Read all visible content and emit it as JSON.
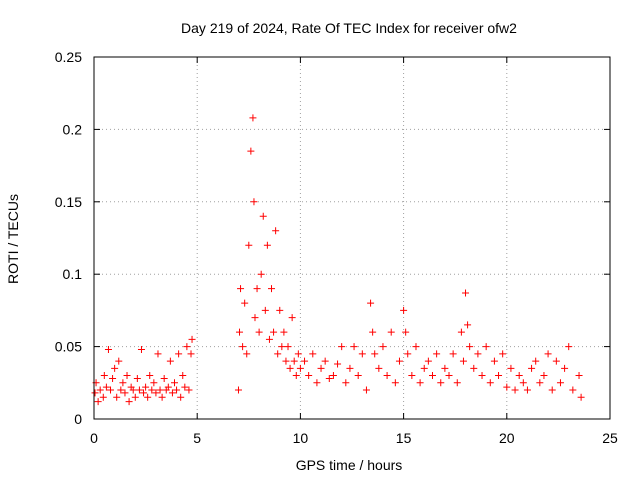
{
  "chart_data": {
    "type": "scatter",
    "title": "Day 219 of 2024, Rate Of TEC Index for receiver ofw2",
    "xlabel": "GPS time / hours",
    "ylabel": "ROTI / TECUs",
    "xlim": [
      0,
      25
    ],
    "ylim": [
      0,
      0.25
    ],
    "x_ticks": [
      "0",
      "5",
      "10",
      "15",
      "20",
      "25"
    ],
    "y_ticks": [
      "0",
      "0.05",
      "0.1",
      "0.15",
      "0.2",
      "0.25"
    ],
    "grid": true,
    "marker": "+",
    "color": "#ff0000",
    "series": [
      {
        "name": "ROTI",
        "x": [
          0.05,
          0.1,
          0.2,
          0.3,
          0.45,
          0.5,
          0.6,
          0.7,
          0.8,
          0.9,
          1.0,
          1.1,
          1.2,
          1.3,
          1.4,
          1.5,
          1.6,
          1.7,
          1.8,
          1.9,
          2.0,
          2.1,
          2.2,
          2.3,
          2.4,
          2.5,
          2.6,
          2.7,
          2.8,
          2.9,
          3.0,
          3.1,
          3.2,
          3.3,
          3.4,
          3.5,
          3.6,
          3.7,
          3.8,
          3.9,
          4.0,
          4.1,
          4.2,
          4.3,
          4.4,
          4.5,
          4.6,
          4.7,
          4.75,
          7.0,
          7.05,
          7.1,
          7.2,
          7.3,
          7.4,
          7.5,
          7.6,
          7.7,
          7.75,
          7.8,
          7.9,
          8.0,
          8.1,
          8.2,
          8.3,
          8.4,
          8.5,
          8.6,
          8.7,
          8.8,
          8.9,
          9.0,
          9.1,
          9.2,
          9.3,
          9.4,
          9.5,
          9.6,
          9.7,
          9.8,
          9.9,
          10.0,
          10.2,
          10.4,
          10.6,
          10.8,
          11.0,
          11.2,
          11.4,
          11.6,
          11.8,
          12.0,
          12.2,
          12.4,
          12.6,
          12.8,
          13.0,
          13.2,
          13.4,
          13.5,
          13.6,
          13.8,
          14.0,
          14.2,
          14.4,
          14.6,
          14.8,
          15.0,
          15.1,
          15.2,
          15.4,
          15.6,
          15.8,
          16.0,
          16.2,
          16.4,
          16.6,
          16.8,
          17.0,
          17.2,
          17.4,
          17.6,
          17.8,
          17.9,
          18.0,
          18.1,
          18.2,
          18.4,
          18.6,
          18.8,
          19.0,
          19.2,
          19.4,
          19.6,
          19.8,
          20.0,
          20.2,
          20.4,
          20.6,
          20.8,
          21.0,
          21.2,
          21.4,
          21.6,
          21.8,
          22.0,
          22.2,
          22.4,
          22.6,
          22.8,
          23.0,
          23.2,
          23.5,
          23.6
        ],
        "y": [
          0.018,
          0.025,
          0.012,
          0.02,
          0.015,
          0.03,
          0.022,
          0.048,
          0.02,
          0.028,
          0.035,
          0.015,
          0.04,
          0.02,
          0.025,
          0.018,
          0.03,
          0.012,
          0.022,
          0.02,
          0.015,
          0.028,
          0.02,
          0.048,
          0.018,
          0.022,
          0.015,
          0.03,
          0.02,
          0.025,
          0.018,
          0.045,
          0.02,
          0.015,
          0.028,
          0.02,
          0.022,
          0.04,
          0.018,
          0.025,
          0.02,
          0.045,
          0.015,
          0.03,
          0.022,
          0.05,
          0.02,
          0.045,
          0.055,
          0.02,
          0.06,
          0.09,
          0.05,
          0.08,
          0.045,
          0.12,
          0.185,
          0.208,
          0.15,
          0.07,
          0.09,
          0.06,
          0.1,
          0.14,
          0.075,
          0.12,
          0.055,
          0.09,
          0.06,
          0.13,
          0.045,
          0.075,
          0.05,
          0.06,
          0.04,
          0.05,
          0.035,
          0.07,
          0.04,
          0.03,
          0.045,
          0.035,
          0.04,
          0.03,
          0.045,
          0.025,
          0.035,
          0.04,
          0.028,
          0.03,
          0.038,
          0.05,
          0.025,
          0.035,
          0.05,
          0.03,
          0.045,
          0.02,
          0.08,
          0.06,
          0.045,
          0.035,
          0.05,
          0.03,
          0.06,
          0.025,
          0.04,
          0.075,
          0.06,
          0.045,
          0.03,
          0.05,
          0.025,
          0.035,
          0.04,
          0.03,
          0.045,
          0.025,
          0.035,
          0.03,
          0.045,
          0.025,
          0.06,
          0.04,
          0.087,
          0.065,
          0.05,
          0.035,
          0.045,
          0.03,
          0.05,
          0.025,
          0.04,
          0.03,
          0.045,
          0.022,
          0.035,
          0.02,
          0.03,
          0.025,
          0.02,
          0.035,
          0.04,
          0.025,
          0.03,
          0.045,
          0.02,
          0.04,
          0.025,
          0.035,
          0.05,
          0.02,
          0.03,
          0.015
        ]
      }
    ]
  }
}
